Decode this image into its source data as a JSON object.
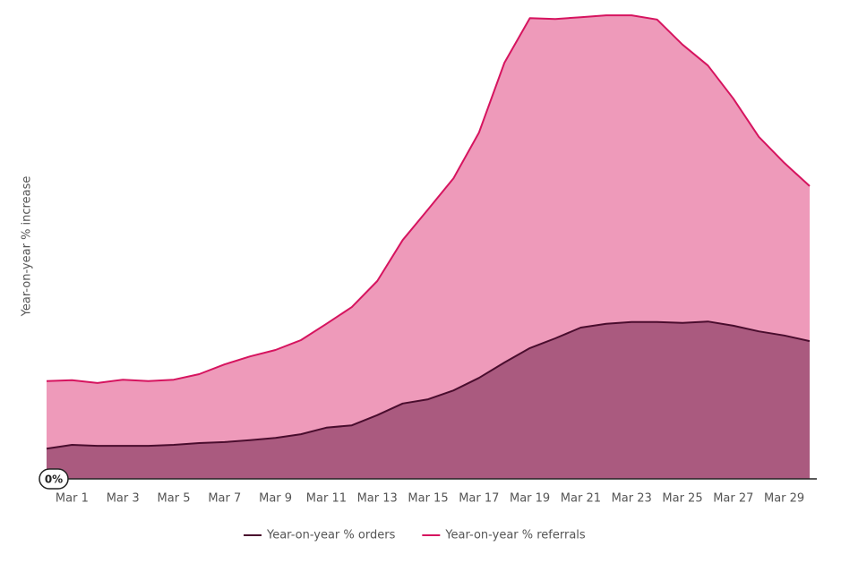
{
  "chart_data": {
    "type": "area",
    "y_label": "Year-on-year % increase",
    "categories": [
      null,
      "Mar 1",
      null,
      "Mar 3",
      null,
      "Mar 5",
      null,
      "Mar 7",
      null,
      "Mar 9",
      null,
      "Mar 11",
      null,
      "Mar 13",
      null,
      "Mar 15",
      null,
      "Mar 17",
      null,
      "Mar 19",
      null,
      "Mar 21",
      null,
      "Mar 23",
      null,
      "Mar 25",
      null,
      "Mar 27",
      null,
      "Mar 29",
      null
    ],
    "series": [
      {
        "name": "Year-on-year % orders",
        "color": "#4a0d2e",
        "fill": "#aa5a7f",
        "values": [
          6.5,
          7.3,
          7.1,
          7.1,
          7.1,
          7.3,
          7.7,
          7.9,
          8.3,
          8.8,
          9.6,
          11.0,
          11.5,
          13.7,
          16.2,
          17.1,
          19.0,
          21.7,
          25.0,
          28.1,
          30.2,
          32.5,
          33.3,
          33.7,
          33.7,
          33.5,
          33.8,
          32.9,
          31.7,
          30.8,
          29.6
        ]
      },
      {
        "name": "Year-on-year % referrals",
        "color": "#d6145f",
        "fill": "#ee9aba",
        "values": [
          21.0,
          21.2,
          20.6,
          21.3,
          21.0,
          21.3,
          22.5,
          24.6,
          26.3,
          27.7,
          29.8,
          33.3,
          36.9,
          42.5,
          51.3,
          57.9,
          64.6,
          74.4,
          89.4,
          99.0,
          98.8,
          99.2,
          99.6,
          99.6,
          98.7,
          93.3,
          88.8,
          81.7,
          73.5,
          67.9,
          62.9
        ]
      }
    ],
    "ylim": [
      0,
      100
    ],
    "yticks": [
      {
        "value": 0,
        "label": "0%"
      }
    ],
    "legend": "bottom"
  }
}
